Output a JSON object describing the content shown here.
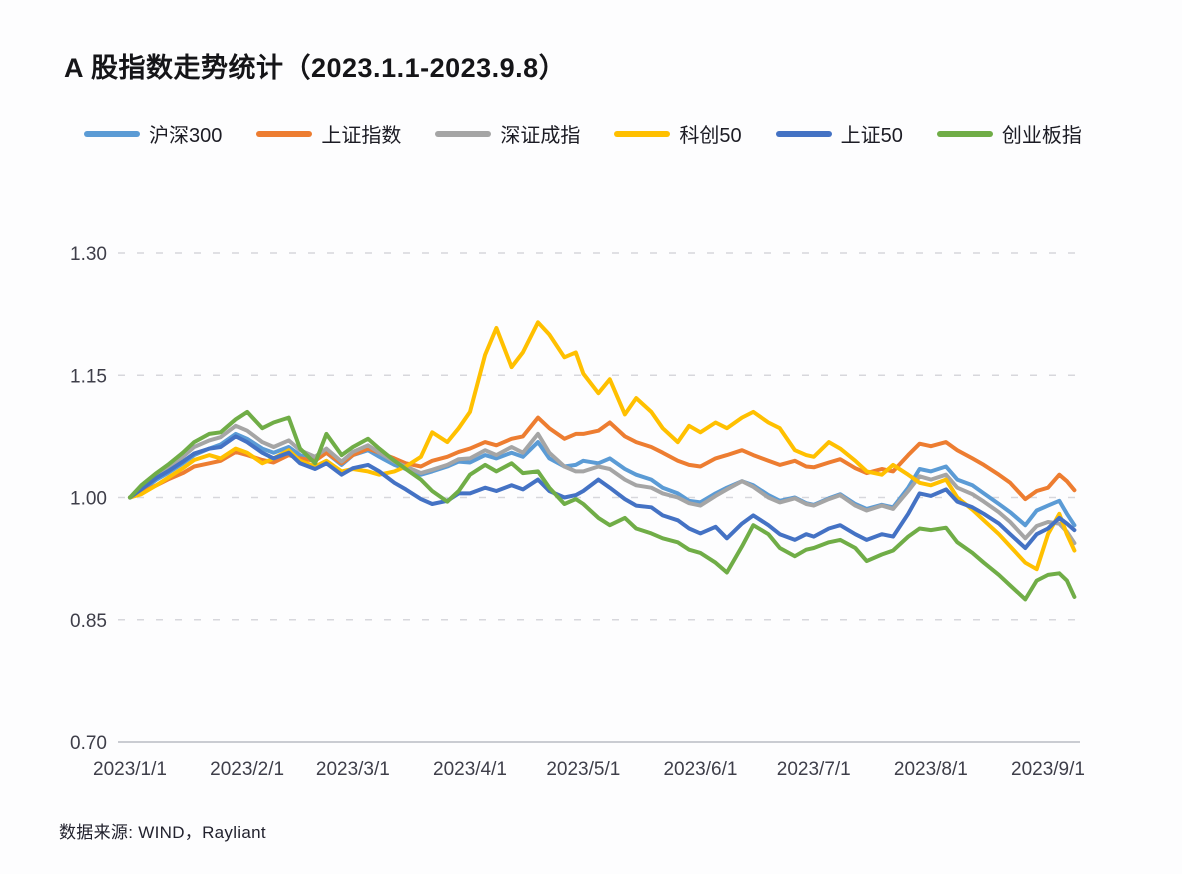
{
  "page": {
    "title": "A 股指数走势统计（2023.1.1-2023.9.8）",
    "source_note": "数据来源: WIND，Rayliant"
  },
  "chart_data": {
    "type": "line",
    "title": "A 股指数走势统计（2023.1.1-2023.9.8）",
    "xlabel": "",
    "ylabel": "",
    "grid": "horizontal-dashed",
    "legend_position": "top",
    "ylim": [
      0.7,
      1.3
    ],
    "y_ticks": [
      {
        "value": 0.7,
        "label": "0.70"
      },
      {
        "value": 0.85,
        "label": "0.85"
      },
      {
        "value": 1.0,
        "label": "1.00"
      },
      {
        "value": 1.15,
        "label": "1.15"
      },
      {
        "value": 1.3,
        "label": "1.30"
      }
    ],
    "x_unit": "days_since_2023-01-01",
    "xlim": [
      0,
      250
    ],
    "x_ticks": [
      {
        "day": 0,
        "label": "2023/1/1"
      },
      {
        "day": 31,
        "label": "2023/2/1"
      },
      {
        "day": 59,
        "label": "2023/3/1"
      },
      {
        "day": 90,
        "label": "2023/4/1"
      },
      {
        "day": 120,
        "label": "2023/5/1"
      },
      {
        "day": 151,
        "label": "2023/6/1"
      },
      {
        "day": 181,
        "label": "2023/7/1"
      },
      {
        "day": 212,
        "label": "2023/8/1"
      },
      {
        "day": 243,
        "label": "2023/9/1"
      }
    ],
    "x": [
      0,
      3,
      7,
      10,
      14,
      17,
      21,
      24,
      28,
      31,
      35,
      38,
      42,
      45,
      49,
      52,
      56,
      59,
      63,
      66,
      70,
      73,
      77,
      80,
      84,
      87,
      90,
      94,
      97,
      101,
      104,
      108,
      111,
      115,
      118,
      120,
      124,
      127,
      131,
      134,
      138,
      141,
      145,
      148,
      151,
      155,
      158,
      162,
      165,
      169,
      172,
      176,
      179,
      181,
      185,
      188,
      192,
      195,
      199,
      202,
      206,
      209,
      212,
      216,
      219,
      223,
      226,
      230,
      233,
      237,
      240,
      243,
      246,
      248,
      250
    ],
    "series": [
      {
        "name": "沪深300",
        "color": "#5B9BD5",
        "values": [
          1.0,
          1.008,
          1.022,
          1.03,
          1.042,
          1.052,
          1.06,
          1.065,
          1.078,
          1.072,
          1.06,
          1.055,
          1.062,
          1.052,
          1.046,
          1.055,
          1.04,
          1.052,
          1.058,
          1.05,
          1.04,
          1.035,
          1.028,
          1.032,
          1.038,
          1.044,
          1.043,
          1.052,
          1.048,
          1.055,
          1.05,
          1.068,
          1.048,
          1.038,
          1.04,
          1.045,
          1.042,
          1.048,
          1.035,
          1.028,
          1.022,
          1.012,
          1.005,
          0.996,
          0.994,
          1.005,
          1.012,
          1.02,
          1.015,
          1.003,
          0.996,
          1.0,
          0.993,
          0.991,
          0.999,
          1.004,
          0.992,
          0.986,
          0.991,
          0.988,
          1.012,
          1.035,
          1.032,
          1.038,
          1.022,
          1.015,
          1.005,
          0.992,
          0.982,
          0.966,
          0.984,
          0.99,
          0.996,
          0.98,
          0.966
        ]
      },
      {
        "name": "上证指数",
        "color": "#ED7D31",
        "values": [
          1.0,
          1.006,
          1.015,
          1.022,
          1.03,
          1.038,
          1.042,
          1.045,
          1.056,
          1.052,
          1.046,
          1.043,
          1.052,
          1.048,
          1.045,
          1.055,
          1.042,
          1.052,
          1.06,
          1.055,
          1.048,
          1.042,
          1.038,
          1.045,
          1.05,
          1.056,
          1.06,
          1.068,
          1.064,
          1.072,
          1.075,
          1.098,
          1.085,
          1.072,
          1.078,
          1.078,
          1.082,
          1.092,
          1.075,
          1.068,
          1.062,
          1.055,
          1.045,
          1.04,
          1.038,
          1.048,
          1.052,
          1.058,
          1.052,
          1.045,
          1.04,
          1.045,
          1.038,
          1.037,
          1.043,
          1.047,
          1.036,
          1.03,
          1.035,
          1.032,
          1.052,
          1.066,
          1.063,
          1.068,
          1.058,
          1.048,
          1.04,
          1.028,
          1.018,
          0.998,
          1.008,
          1.012,
          1.028,
          1.02,
          1.009
        ]
      },
      {
        "name": "深证成指",
        "color": "#A5A5A5",
        "values": [
          1.0,
          1.01,
          1.026,
          1.036,
          1.05,
          1.062,
          1.07,
          1.074,
          1.088,
          1.082,
          1.068,
          1.062,
          1.07,
          1.058,
          1.05,
          1.06,
          1.044,
          1.056,
          1.064,
          1.055,
          1.044,
          1.038,
          1.03,
          1.034,
          1.04,
          1.047,
          1.048,
          1.058,
          1.052,
          1.062,
          1.055,
          1.078,
          1.055,
          1.038,
          1.032,
          1.032,
          1.038,
          1.035,
          1.022,
          1.015,
          1.012,
          1.005,
          1.0,
          0.993,
          0.99,
          1.002,
          1.01,
          1.02,
          1.013,
          1.0,
          0.994,
          0.999,
          0.992,
          0.99,
          0.998,
          1.003,
          0.99,
          0.984,
          0.99,
          0.986,
          1.008,
          1.026,
          1.022,
          1.028,
          1.012,
          1.004,
          0.995,
          0.982,
          0.97,
          0.95,
          0.965,
          0.97,
          0.968,
          0.958,
          0.944
        ]
      },
      {
        "name": "科创50",
        "color": "#FFC000",
        "values": [
          1.0,
          1.004,
          1.015,
          1.024,
          1.036,
          1.046,
          1.052,
          1.048,
          1.06,
          1.055,
          1.042,
          1.048,
          1.058,
          1.045,
          1.038,
          1.045,
          1.032,
          1.035,
          1.032,
          1.028,
          1.032,
          1.038,
          1.05,
          1.08,
          1.068,
          1.085,
          1.105,
          1.175,
          1.208,
          1.16,
          1.178,
          1.215,
          1.2,
          1.172,
          1.178,
          1.152,
          1.128,
          1.145,
          1.102,
          1.122,
          1.105,
          1.085,
          1.068,
          1.088,
          1.08,
          1.092,
          1.085,
          1.098,
          1.105,
          1.092,
          1.085,
          1.058,
          1.052,
          1.05,
          1.068,
          1.06,
          1.045,
          1.032,
          1.028,
          1.04,
          1.028,
          1.018,
          1.015,
          1.022,
          1.0,
          0.985,
          0.972,
          0.955,
          0.94,
          0.92,
          0.912,
          0.955,
          0.98,
          0.955,
          0.935
        ]
      },
      {
        "name": "上证50",
        "color": "#4472C4",
        "values": [
          1.0,
          1.01,
          1.024,
          1.032,
          1.044,
          1.054,
          1.06,
          1.062,
          1.075,
          1.068,
          1.055,
          1.048,
          1.055,
          1.042,
          1.035,
          1.042,
          1.028,
          1.036,
          1.04,
          1.032,
          1.018,
          1.01,
          0.998,
          0.992,
          0.996,
          1.005,
          1.005,
          1.012,
          1.008,
          1.015,
          1.01,
          1.022,
          1.008,
          1.0,
          1.003,
          1.008,
          1.022,
          1.012,
          0.998,
          0.99,
          0.988,
          0.978,
          0.972,
          0.962,
          0.956,
          0.964,
          0.95,
          0.968,
          0.978,
          0.966,
          0.955,
          0.948,
          0.955,
          0.952,
          0.962,
          0.966,
          0.955,
          0.948,
          0.955,
          0.952,
          0.98,
          1.005,
          1.002,
          1.01,
          0.995,
          0.988,
          0.98,
          0.968,
          0.955,
          0.938,
          0.955,
          0.962,
          0.975,
          0.968,
          0.96
        ]
      },
      {
        "name": "创业板指",
        "color": "#70AD47",
        "values": [
          1.0,
          1.015,
          1.03,
          1.04,
          1.055,
          1.068,
          1.078,
          1.08,
          1.096,
          1.105,
          1.085,
          1.092,
          1.098,
          1.06,
          1.042,
          1.078,
          1.052,
          1.062,
          1.072,
          1.06,
          1.045,
          1.035,
          1.022,
          1.008,
          0.995,
          1.008,
          1.028,
          1.04,
          1.032,
          1.042,
          1.03,
          1.032,
          1.012,
          0.992,
          0.998,
          0.992,
          0.975,
          0.966,
          0.975,
          0.962,
          0.956,
          0.95,
          0.945,
          0.936,
          0.932,
          0.92,
          0.908,
          0.94,
          0.966,
          0.955,
          0.938,
          0.928,
          0.936,
          0.938,
          0.945,
          0.948,
          0.938,
          0.922,
          0.93,
          0.935,
          0.952,
          0.962,
          0.96,
          0.963,
          0.945,
          0.932,
          0.92,
          0.905,
          0.892,
          0.875,
          0.898,
          0.905,
          0.907,
          0.898,
          0.878
        ]
      }
    ],
    "style": {
      "gridline_color": "#d7d7dc",
      "axis_line_color": "#b9bcc4",
      "tick_label_color": "#3e3e49",
      "line_width": 4
    }
  }
}
